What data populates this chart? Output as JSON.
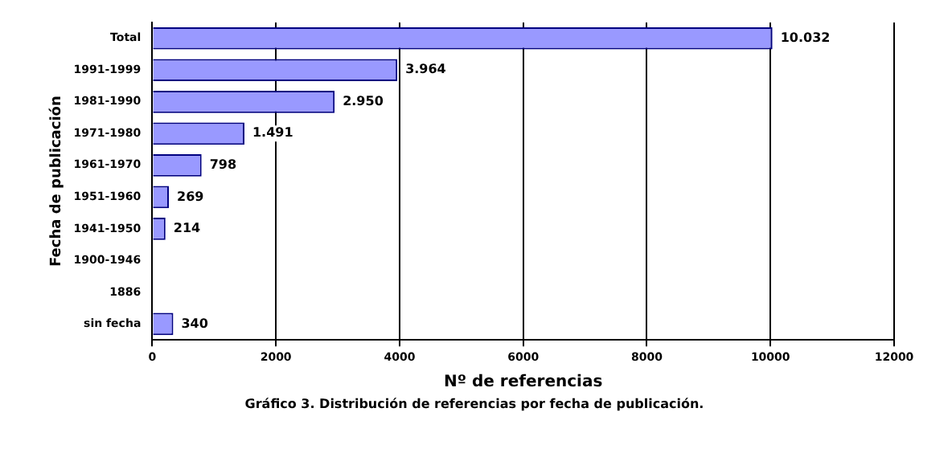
{
  "chart_data": {
    "type": "bar",
    "orientation": "horizontal",
    "xlabel": "Nº de referencias",
    "ylabel": "Fecha de publicación",
    "categories": [
      "Total",
      "1991-1999",
      "1981-1990",
      "1971-1980",
      "1961-1970",
      "1951-1960",
      "1941-1950",
      "1900-1946",
      "1886",
      "sin fecha"
    ],
    "values": [
      10032,
      3964,
      2950,
      1491,
      798,
      269,
      214,
      null,
      null,
      340
    ],
    "value_labels": [
      "10.032",
      "3.964",
      "2.950",
      "1.491",
      "798",
      "269",
      "214",
      null,
      null,
      "340"
    ],
    "color": "#9999ff",
    "xlim": [
      0,
      12000
    ],
    "xticks": [
      0,
      2000,
      4000,
      6000,
      8000,
      10000,
      12000
    ],
    "grid": "x",
    "legend": false,
    "annotations": [
      "Gráfico 3. Distribución de referencias por fecha de publicación."
    ]
  }
}
